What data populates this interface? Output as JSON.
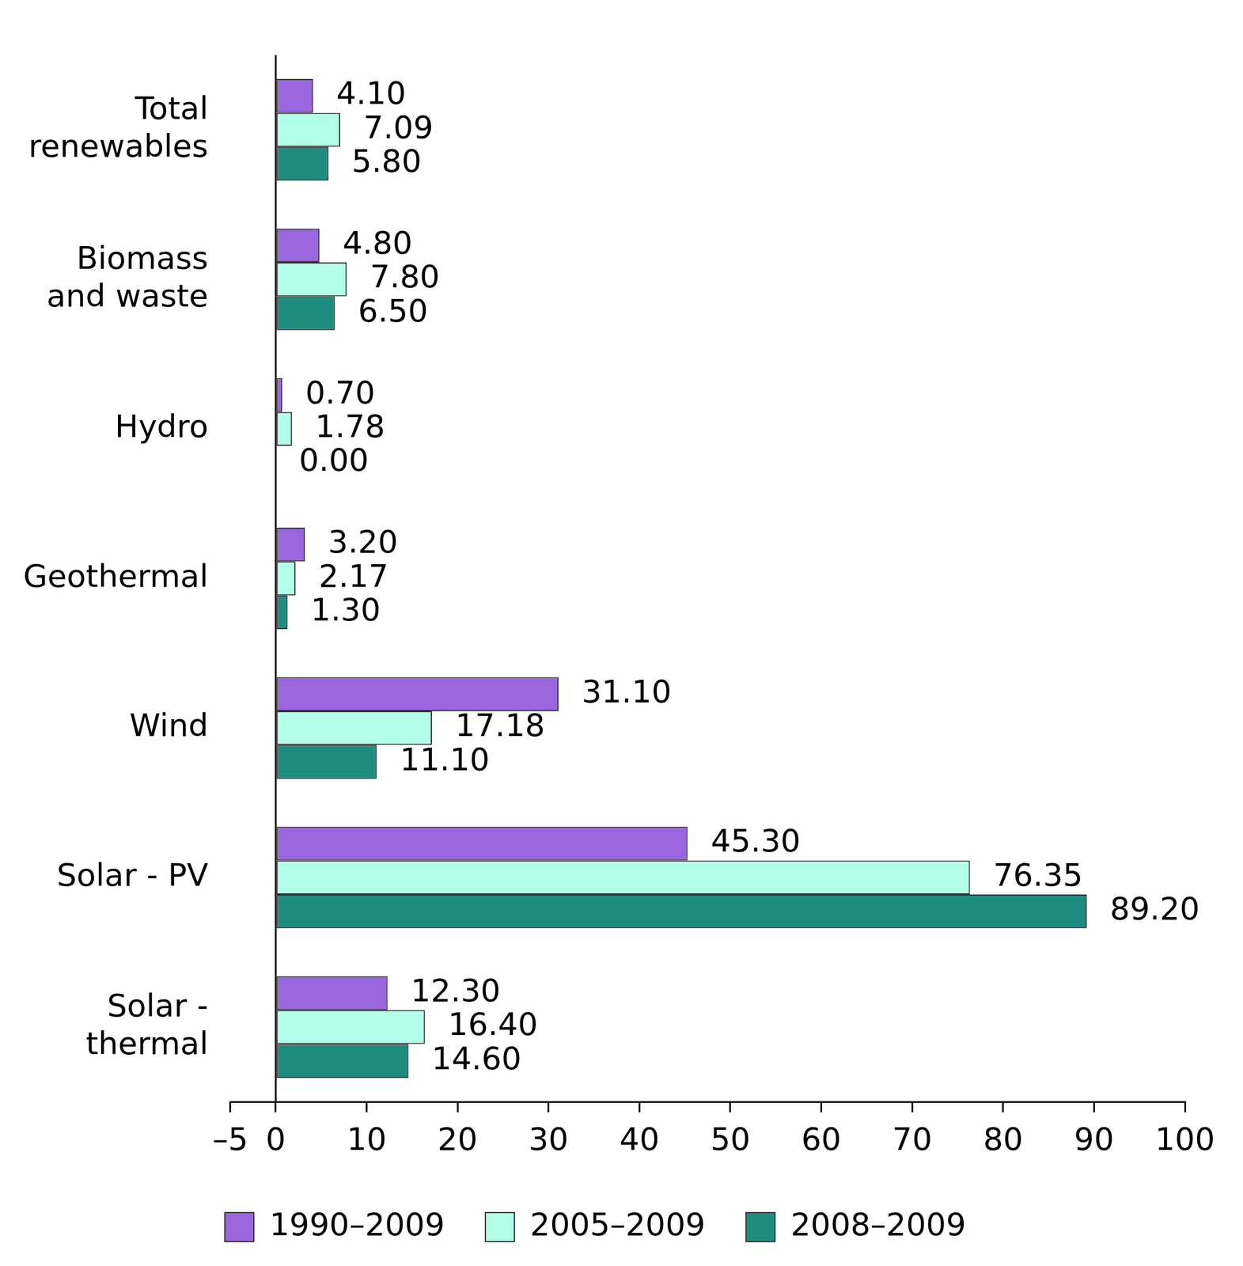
{
  "chart_data": {
    "type": "bar",
    "orientation": "horizontal",
    "categories": [
      "Total renewables",
      "Biomass and waste",
      "Hydro",
      "Geothermal",
      "Wind",
      "Solar - PV",
      "Solar - thermal"
    ],
    "series": [
      {
        "name": "1990–2009",
        "color": "#9966dd",
        "values": [
          4.1,
          4.8,
          0.7,
          3.2,
          31.1,
          45.3,
          12.3
        ],
        "value_labels": [
          "4.10",
          "4.80",
          "0.70",
          "3.20",
          "31.10",
          "45.30",
          "12.30"
        ]
      },
      {
        "name": "2005–2009",
        "color": "#b3ffe8",
        "values": [
          7.09,
          7.8,
          1.78,
          2.17,
          17.18,
          76.35,
          16.4
        ],
        "value_labels": [
          "7.09",
          "7.80",
          "1.78",
          "2.17",
          "17.18",
          "76.35",
          "16.40"
        ]
      },
      {
        "name": "2008–2009",
        "color": "#1f8c80",
        "values": [
          5.8,
          6.5,
          0.0,
          1.3,
          11.1,
          89.2,
          14.6
        ],
        "value_labels": [
          "5.80",
          "6.50",
          "0.00",
          "1.30",
          "11.10",
          "89.20",
          "14.60"
        ]
      }
    ],
    "xlim": [
      -5,
      100
    ],
    "xticks": [
      {
        "value": -5,
        "label": "–5"
      },
      0,
      10,
      20,
      30,
      40,
      50,
      60,
      70,
      80,
      90,
      100
    ],
    "grid": false,
    "legend": "bottom",
    "data_labels": true
  }
}
